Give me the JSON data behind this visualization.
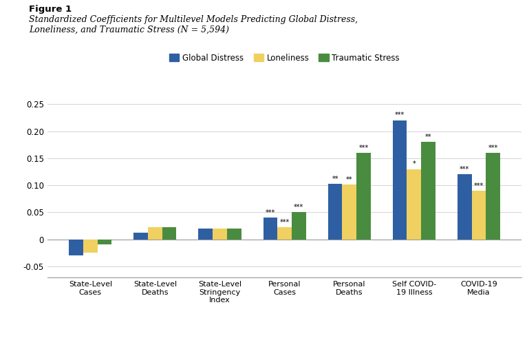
{
  "categories": [
    "State-Level\nCases",
    "State-Level\nDeaths",
    "State-Level\nStringency\nIndex",
    "Personal\nCases",
    "Personal\nDeaths",
    "Self COVID-\n19 Illness",
    "COVID-19\nMedia"
  ],
  "global_distress": [
    -0.03,
    0.012,
    0.02,
    0.04,
    0.102,
    0.22,
    0.12
  ],
  "loneliness": [
    -0.025,
    0.022,
    0.02,
    0.022,
    0.101,
    0.13,
    0.09
  ],
  "traumatic_stress": [
    -0.01,
    0.022,
    0.02,
    0.05,
    0.16,
    0.18,
    0.16
  ],
  "annotations_gd": [
    "",
    "",
    "",
    "***",
    "**",
    "***",
    "***"
  ],
  "annotations_lo": [
    "",
    "",
    "",
    "***",
    "**",
    "*",
    "***"
  ],
  "annotations_ts": [
    "",
    "",
    "",
    "***",
    "***",
    "**",
    "***"
  ],
  "colors": {
    "global_distress": "#2E5FA3",
    "loneliness": "#F0D060",
    "traumatic_stress": "#4A8C3F"
  },
  "ylim": [
    -0.07,
    0.28
  ],
  "yticks": [
    -0.05,
    0.0,
    0.05,
    0.1,
    0.15,
    0.2,
    0.25
  ],
  "ytick_labels": [
    "-0.05",
    "0",
    "0.05",
    "0.10",
    "0.15",
    "0.20",
    "0.25"
  ],
  "title_bold": "Figure 1",
  "title_italic": "Standardized Coefficients for Multilevel Models Predicting Global Distress,\nLoneliness, and Traumatic Stress (N = 5,594)",
  "legend_labels": [
    "Global Distress",
    "Loneliness",
    "Traumatic Stress"
  ],
  "bar_width": 0.22
}
